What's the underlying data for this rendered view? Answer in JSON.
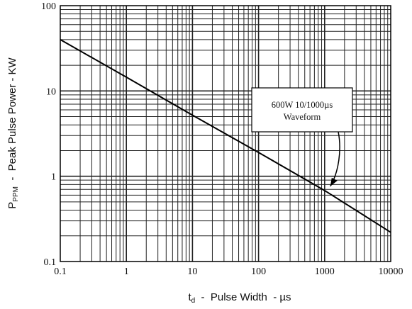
{
  "chart_data": {
    "type": "line",
    "title": "",
    "xlabel": {
      "main": "t",
      "sub": "d",
      "rest": "  -  Pulse Width  - µs"
    },
    "ylabel": {
      "main": "P",
      "sub": "PPM",
      "rest": "  -  Peak Pulse Power - KW"
    },
    "x_scale": "log",
    "y_scale": "log",
    "xlim": [
      0.1,
      10000
    ],
    "ylim": [
      0.1,
      100
    ],
    "x_tick_labels": [
      "0.1",
      "1",
      "10",
      "100",
      "1000",
      "10000"
    ],
    "y_tick_labels": [
      "0.1",
      "1",
      "10",
      "100"
    ],
    "grid": true,
    "series": [
      {
        "x": [
          0.1,
          1,
          10,
          100,
          1000,
          10000
        ],
        "y": [
          40,
          14.5,
          5.2,
          1.9,
          0.68,
          0.22
        ]
      }
    ],
    "annotation": {
      "lines": [
        "600W 10/1000µs",
        "Waveform"
      ],
      "points_to": {
        "x": 1000,
        "y": 0.68
      }
    }
  }
}
